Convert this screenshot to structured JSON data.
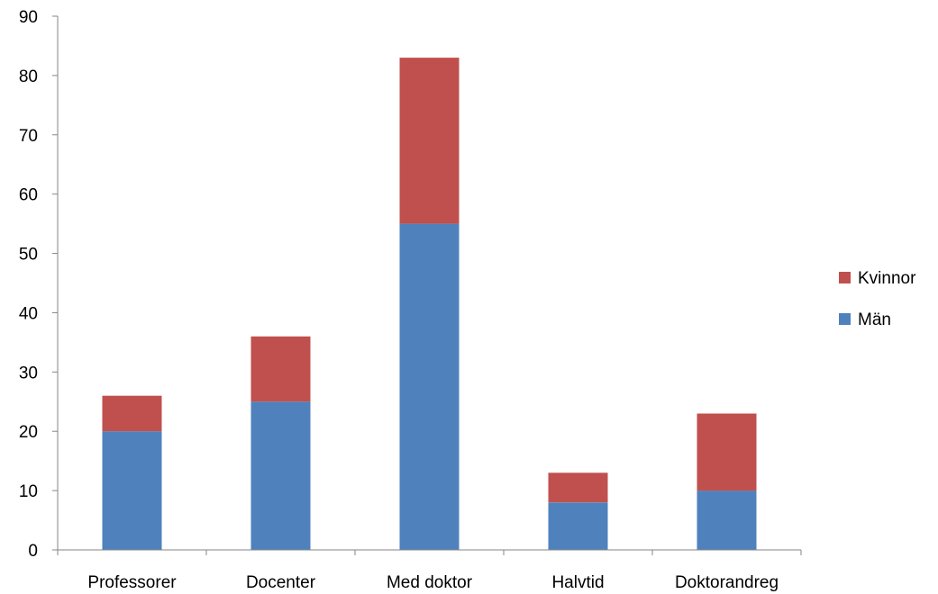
{
  "chart_data": {
    "type": "bar",
    "stacked": true,
    "title": "",
    "xlabel": "",
    "ylabel": "",
    "categories": [
      "Professorer",
      "Docenter",
      "Med doktor",
      "Halvtid",
      "Doktorandreg"
    ],
    "series": [
      {
        "name": "Män",
        "color": "#4F81BD",
        "values": [
          20,
          25,
          55,
          8,
          10
        ]
      },
      {
        "name": "Kvinnor",
        "color": "#C0504D",
        "values": [
          6,
          11,
          28,
          5,
          13
        ]
      }
    ],
    "ylim": [
      0,
      90
    ],
    "yticks": [
      0,
      10,
      20,
      30,
      40,
      50,
      60,
      70,
      80,
      90
    ],
    "grid": false,
    "legend": {
      "position": "right",
      "order": [
        "Kvinnor",
        "Män"
      ]
    },
    "axis_color": "#868686"
  }
}
